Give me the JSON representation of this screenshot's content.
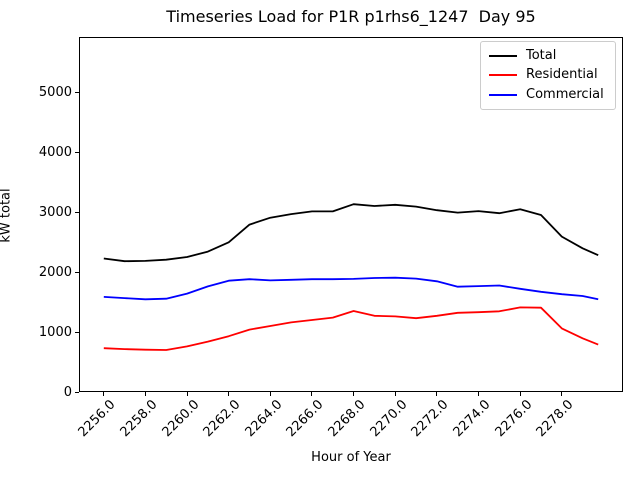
{
  "title": "Timeseries Load for P1R p1rhs6_1247  Day 95",
  "axes": {
    "xlabel": "Hour of Year",
    "ylabel": "kW total",
    "x_tick_labels": [
      "2256.0",
      "2258.0",
      "2260.0",
      "2262.0",
      "2264.0",
      "2266.0",
      "2268.0",
      "2270.0",
      "2272.0",
      "2274.0",
      "2276.0",
      "2278.0"
    ],
    "y_tick_labels": [
      "0",
      "1000",
      "2000",
      "3000",
      "4000",
      "5000"
    ]
  },
  "legend": {
    "entries": [
      {
        "label": "Total",
        "color": "#000000"
      },
      {
        "label": "Residential",
        "color": "#ff0000"
      },
      {
        "label": "Commercial",
        "color": "#0000ff"
      }
    ]
  },
  "chart_data": {
    "type": "line",
    "title": "Timeseries Load for P1R p1rhs6_1247  Day 95",
    "xlabel": "Hour of Year",
    "ylabel": "kW total",
    "xlim": [
      2254.81,
      2280.94
    ],
    "ylim": [
      0,
      5917
    ],
    "grid": false,
    "legend_position": "upper right",
    "x": [
      2256,
      2257,
      2258,
      2259,
      2260,
      2261,
      2262,
      2263,
      2264,
      2265,
      2266,
      2267,
      2268,
      2269,
      2270,
      2271,
      2272,
      2273,
      2274,
      2275,
      2276,
      2277,
      2278,
      2279,
      2279.75
    ],
    "series": [
      {
        "name": "Total",
        "color": "#000000",
        "values": [
          2225,
          2180,
          2185,
          2205,
          2250,
          2340,
          2495,
          2790,
          2905,
          2965,
          3010,
          3010,
          3130,
          3100,
          3120,
          3090,
          3030,
          2990,
          3015,
          2980,
          3045,
          2950,
          2590,
          2395,
          2280
        ]
      },
      {
        "name": "Residential",
        "color": "#ff0000",
        "values": [
          730,
          715,
          705,
          700,
          760,
          840,
          930,
          1040,
          1100,
          1160,
          1200,
          1240,
          1350,
          1270,
          1260,
          1230,
          1270,
          1320,
          1330,
          1345,
          1410,
          1405,
          1060,
          895,
          790
        ]
      },
      {
        "name": "Commercial",
        "color": "#0000ff",
        "values": [
          1585,
          1565,
          1545,
          1555,
          1640,
          1760,
          1855,
          1880,
          1860,
          1870,
          1880,
          1880,
          1885,
          1900,
          1905,
          1890,
          1845,
          1755,
          1765,
          1775,
          1720,
          1670,
          1630,
          1600,
          1545
        ]
      }
    ]
  }
}
